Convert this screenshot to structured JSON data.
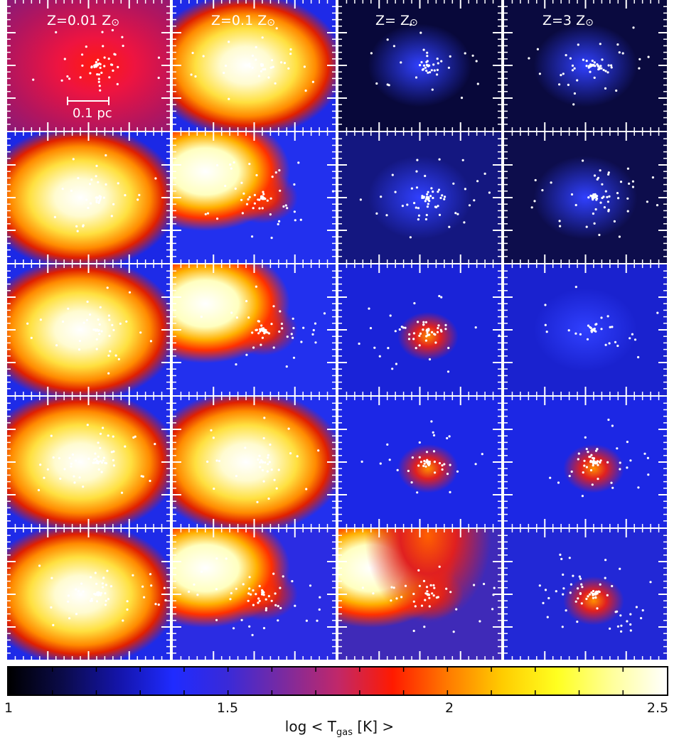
{
  "column_titles": [
    {
      "prefix": "Z=0.01 Z",
      "sun": "⊙"
    },
    {
      "prefix": "Z=0.1 Z",
      "sun": "⊙"
    },
    {
      "prefix": "Z= Z",
      "sun": "⊙"
    },
    {
      "prefix": "Z=3 Z",
      "sun": "⊙"
    }
  ],
  "scale_bar_label": "0.1 pc",
  "colorbar": {
    "ticks": [
      "1",
      "1.5",
      "2",
      "2.5"
    ],
    "tick_values": [
      1,
      1.5,
      2,
      2.5
    ],
    "range": [
      1,
      2.5
    ],
    "label_main": "log < T",
    "label_sub": "gas",
    "label_tail": " [K] >",
    "colors": [
      "#000000",
      "#0b0b4a",
      "#1414a8",
      "#1f2bff",
      "#3a2ad8",
      "#7a2aa0",
      "#c0286a",
      "#ff1a00",
      "#ff7a00",
      "#ffcc00",
      "#ffff20",
      "#ffff9a",
      "#ffffff"
    ]
  },
  "panel_heat": [
    [
      0.95,
      0.85,
      0.2,
      0.15
    ],
    [
      0.9,
      0.7,
      0.3,
      0.2
    ],
    [
      0.9,
      0.55,
      0.45,
      0.3
    ],
    [
      0.95,
      0.9,
      0.35,
      0.35
    ],
    [
      0.95,
      0.6,
      0.55,
      0.4
    ]
  ],
  "panel_backgrounds": [
    [
      "#b3155e",
      "#1e2ae8",
      "#08083a",
      "#0a0a3f"
    ],
    [
      "#1b28e6",
      "#2230ee",
      "#141780",
      "#0d0d4c"
    ],
    [
      "#1e2be8",
      "#2230ee",
      "#1a23d8",
      "#1a22cf"
    ],
    [
      "#1e2be8",
      "#2230ee",
      "#1c27e6",
      "#1c27e4"
    ],
    [
      "#1e2be8",
      "#2b2ce3",
      "#3f2ab8",
      "#2228d6"
    ]
  ]
}
